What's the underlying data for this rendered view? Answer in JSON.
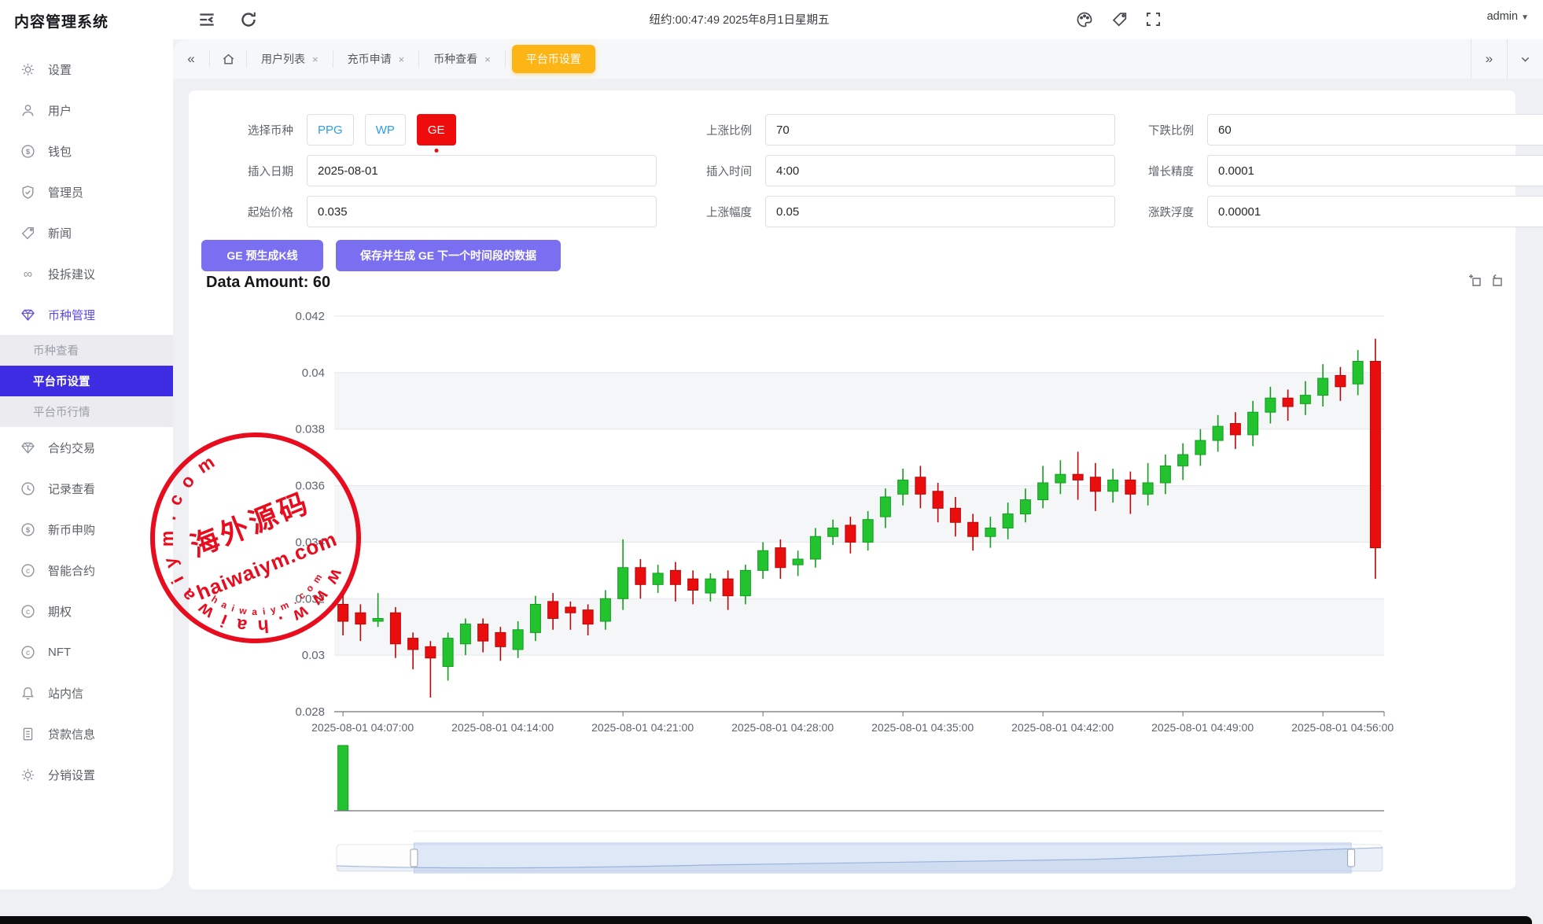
{
  "app": {
    "title": "内容管理系统",
    "clock": "纽约:00:47:49 2025年8月1日星期五",
    "user": "admin"
  },
  "tabs": {
    "items": [
      {
        "label": "用户列表",
        "closable": true
      },
      {
        "label": "充币申请",
        "closable": true
      },
      {
        "label": "币种查看",
        "closable": true
      },
      {
        "label": "平台币设置",
        "active": true
      }
    ]
  },
  "sidebar": {
    "items": [
      {
        "icon": "gear-icon",
        "label": "设置"
      },
      {
        "icon": "user-icon",
        "label": "用户"
      },
      {
        "icon": "dollar-circle-icon",
        "label": "钱包"
      },
      {
        "icon": "shield-check-icon",
        "label": "管理员"
      },
      {
        "icon": "tag-icon",
        "label": "新闻"
      },
      {
        "icon": "infinity-icon",
        "label": "投拆建议"
      },
      {
        "icon": "gem-icon",
        "label": "币种管理",
        "active": true,
        "children": [
          {
            "label": "币种查看"
          },
          {
            "label": "平台币设置",
            "active": true
          },
          {
            "label": "平台币行情"
          }
        ]
      },
      {
        "icon": "gem-icon",
        "label": "合约交易"
      },
      {
        "icon": "clock-icon",
        "label": "记录查看"
      },
      {
        "icon": "dollar-circle-icon",
        "label": "新币申购"
      },
      {
        "icon": "c-circle-icon",
        "label": "智能合约"
      },
      {
        "icon": "c-circle-icon",
        "label": "期权"
      },
      {
        "icon": "c-circle-icon",
        "label": "NFT"
      },
      {
        "icon": "bell-icon",
        "label": "站内信"
      },
      {
        "icon": "doc-icon",
        "label": "贷款信息"
      },
      {
        "icon": "gear-icon",
        "label": "分销设置"
      }
    ]
  },
  "form": {
    "rows": [
      [
        {
          "type": "chips",
          "label": "选择币种",
          "chips": [
            {
              "label": "PPG"
            },
            {
              "label": "WP"
            },
            {
              "label": "GE",
              "active": true
            }
          ]
        },
        {
          "type": "field",
          "label": "上涨比例",
          "value": "70"
        },
        {
          "type": "field",
          "label": "下跌比例",
          "value": "60"
        }
      ],
      [
        {
          "type": "field",
          "label": "插入日期",
          "value": "2025-08-01"
        },
        {
          "type": "field",
          "label": "插入时间",
          "value": "4:00"
        },
        {
          "type": "field",
          "label": "增长精度",
          "value": "0.0001"
        }
      ],
      [
        {
          "type": "field",
          "label": "起始价格",
          "value": "0.035"
        },
        {
          "type": "field",
          "label": "上涨幅度",
          "value": "0.05"
        },
        {
          "type": "field",
          "label": "涨跌浮度",
          "value": "0.00001"
        }
      ]
    ],
    "buttons": {
      "pregen": "GE 预生成K线",
      "save": "保存并生成 GE 下一个时间段的数据"
    }
  },
  "data_amount_label": "Data Amount: 60",
  "chart_data": {
    "type": "candlestick",
    "title": "",
    "ylim": [
      0.028,
      0.042
    ],
    "y_ticks": [
      0.042,
      0.04,
      0.038,
      0.036,
      0.034,
      0.032,
      0.03,
      0.028
    ],
    "x_labels": [
      "2025-08-01 04:07:00",
      "2025-08-01 04:14:00",
      "2025-08-01 04:21:00",
      "2025-08-01 04:28:00",
      "2025-08-01 04:35:00",
      "2025-08-01 04:42:00",
      "2025-08-01 04:49:00",
      "2025-08-01 04:56:00"
    ],
    "x_label_indices": [
      0,
      8,
      16,
      24,
      32,
      40,
      48,
      56
    ],
    "up_color": "#22c32e",
    "down_color": "#ea0d0d",
    "grid": true,
    "legend_position": "none",
    "ohlc": [
      [
        0.0318,
        0.0312,
        0.0307,
        0.0322
      ],
      [
        0.0315,
        0.0311,
        0.0305,
        0.0318
      ],
      [
        0.0312,
        0.0313,
        0.031,
        0.0322
      ],
      [
        0.0315,
        0.0304,
        0.0299,
        0.0317
      ],
      [
        0.0306,
        0.0302,
        0.0295,
        0.0308
      ],
      [
        0.0303,
        0.0299,
        0.0285,
        0.0305
      ],
      [
        0.0296,
        0.0306,
        0.0291,
        0.0308
      ],
      [
        0.0304,
        0.0311,
        0.03,
        0.0313
      ],
      [
        0.0311,
        0.0305,
        0.0301,
        0.0313
      ],
      [
        0.0308,
        0.0303,
        0.0298,
        0.031
      ],
      [
        0.0302,
        0.0309,
        0.0299,
        0.0312
      ],
      [
        0.0308,
        0.0318,
        0.0305,
        0.0321
      ],
      [
        0.0319,
        0.0313,
        0.0309,
        0.0322
      ],
      [
        0.0317,
        0.0315,
        0.0309,
        0.0319
      ],
      [
        0.0316,
        0.0311,
        0.0307,
        0.0318
      ],
      [
        0.0312,
        0.032,
        0.0309,
        0.0323
      ],
      [
        0.032,
        0.0331,
        0.0316,
        0.0341
      ],
      [
        0.0331,
        0.0325,
        0.032,
        0.0334
      ],
      [
        0.0325,
        0.0329,
        0.0322,
        0.0332
      ],
      [
        0.033,
        0.0325,
        0.0319,
        0.0333
      ],
      [
        0.0327,
        0.0323,
        0.0318,
        0.033
      ],
      [
        0.0322,
        0.0327,
        0.0319,
        0.0329
      ],
      [
        0.0327,
        0.0321,
        0.0316,
        0.033
      ],
      [
        0.0321,
        0.033,
        0.0318,
        0.0332
      ],
      [
        0.033,
        0.0337,
        0.0327,
        0.034
      ],
      [
        0.0338,
        0.0331,
        0.0327,
        0.0341
      ],
      [
        0.0332,
        0.0334,
        0.0328,
        0.0337
      ],
      [
        0.0334,
        0.0342,
        0.0331,
        0.0345
      ],
      [
        0.0342,
        0.0345,
        0.0339,
        0.0348
      ],
      [
        0.0346,
        0.034,
        0.0336,
        0.0349
      ],
      [
        0.034,
        0.0348,
        0.0337,
        0.0351
      ],
      [
        0.0349,
        0.0356,
        0.0345,
        0.0359
      ],
      [
        0.0357,
        0.0362,
        0.0353,
        0.0366
      ],
      [
        0.0363,
        0.0357,
        0.0352,
        0.0367
      ],
      [
        0.0358,
        0.0352,
        0.0347,
        0.0361
      ],
      [
        0.0352,
        0.0347,
        0.0342,
        0.0356
      ],
      [
        0.0347,
        0.0342,
        0.0337,
        0.035
      ],
      [
        0.0342,
        0.0345,
        0.0338,
        0.0349
      ],
      [
        0.0345,
        0.035,
        0.0341,
        0.0354
      ],
      [
        0.035,
        0.0355,
        0.0347,
        0.0359
      ],
      [
        0.0355,
        0.0361,
        0.0352,
        0.0367
      ],
      [
        0.0361,
        0.0364,
        0.0357,
        0.0369
      ],
      [
        0.0364,
        0.0362,
        0.0355,
        0.0372
      ],
      [
        0.0363,
        0.0358,
        0.0351,
        0.0368
      ],
      [
        0.0358,
        0.0362,
        0.0354,
        0.0366
      ],
      [
        0.0362,
        0.0357,
        0.035,
        0.0365
      ],
      [
        0.0357,
        0.0361,
        0.0353,
        0.0368
      ],
      [
        0.0361,
        0.0367,
        0.0357,
        0.0371
      ],
      [
        0.0367,
        0.0371,
        0.0362,
        0.0375
      ],
      [
        0.0371,
        0.0376,
        0.0367,
        0.038
      ],
      [
        0.0376,
        0.0381,
        0.0372,
        0.0385
      ],
      [
        0.0382,
        0.0378,
        0.0373,
        0.0386
      ],
      [
        0.0378,
        0.0386,
        0.0374,
        0.039
      ],
      [
        0.0386,
        0.0391,
        0.0382,
        0.0395
      ],
      [
        0.0391,
        0.0388,
        0.0383,
        0.0394
      ],
      [
        0.0389,
        0.0392,
        0.0385,
        0.0397
      ],
      [
        0.0392,
        0.0398,
        0.0388,
        0.0403
      ],
      [
        0.0399,
        0.0395,
        0.039,
        0.0402
      ],
      [
        0.0396,
        0.0404,
        0.0392,
        0.0408
      ],
      [
        0.0404,
        0.0338,
        0.0327,
        0.0412
      ]
    ],
    "volume_bars": [
      {
        "index": 0,
        "value": 1
      }
    ],
    "slider": {
      "start_frac": 0.074,
      "end_frac": 0.97
    }
  },
  "watermark": {
    "arc_top": "w w w . h a i w a i y m . c o m",
    "line1": "海外源码",
    "line2": "haiwaiym.com",
    "arc_bottom": "h a i w a i y m . c o m",
    "color": "#e60012"
  }
}
